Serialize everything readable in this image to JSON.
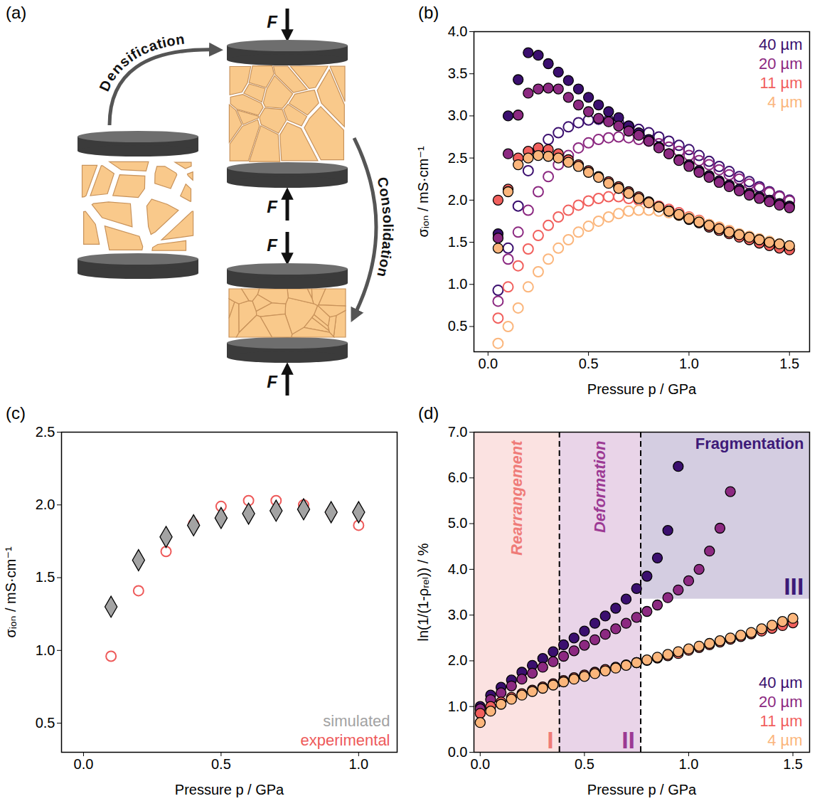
{
  "diagram": {
    "panel": "(a)",
    "type": "diagram",
    "step1": "Densification",
    "step2": "Consolidation",
    "force": "F"
  },
  "chart_data": [
    {
      "panel": "(b)",
      "type": "scatter",
      "xlabel": "Pressure p / GPa",
      "ylabel": "σᵢₒₙ / mS·cm⁻¹",
      "xlim": [
        -0.07,
        1.6
      ],
      "ylim": [
        0.2,
        4.0
      ],
      "xticks": [
        {
          "value": 0,
          "label": "0.0"
        },
        0.5,
        {
          "value": 1,
          "label": "1.0"
        },
        1.5
      ],
      "yticks": [
        0.5,
        {
          "value": 1,
          "label": "1.0"
        },
        1.5,
        {
          "value": 2,
          "label": "2.0"
        },
        2.5,
        {
          "value": 3,
          "label": "3.0"
        },
        3.5,
        {
          "value": 4,
          "label": "4.0"
        }
      ],
      "legend": "top-right",
      "x": [
        0.05,
        0.1,
        0.15,
        0.2,
        0.25,
        0.3,
        0.35,
        0.4,
        0.45,
        0.5,
        0.55,
        0.6,
        0.65,
        0.7,
        0.75,
        0.8,
        0.85,
        0.9,
        0.95,
        1.0,
        1.05,
        1.1,
        1.15,
        1.2,
        1.25,
        1.3,
        1.35,
        1.4,
        1.45,
        1.5
      ],
      "series": [
        {
          "name": "40 µm",
          "color": "#3b0f6f",
          "marker": "circle",
          "values": [
            1.6,
            3.0,
            3.43,
            3.75,
            3.72,
            3.62,
            3.52,
            3.42,
            3.32,
            3.22,
            3.13,
            3.05,
            2.98,
            2.88,
            2.8,
            2.72,
            2.63,
            2.55,
            2.48,
            2.42,
            2.35,
            2.29,
            2.23,
            2.18,
            2.13,
            2.08,
            2.04,
            2.0,
            1.96,
            1.93
          ]
        },
        {
          "name": "20 µm",
          "color": "#8c2981",
          "marker": "circle",
          "values": [
            1.55,
            2.55,
            3.01,
            3.27,
            3.32,
            3.33,
            3.32,
            3.22,
            3.13,
            3.05,
            2.97,
            2.93,
            2.88,
            2.82,
            2.77,
            2.7,
            2.62,
            2.55,
            2.47,
            2.4,
            2.33,
            2.27,
            2.21,
            2.16,
            2.11,
            2.06,
            2.02,
            1.98,
            1.94,
            1.91
          ]
        },
        {
          "name": "11 µm",
          "color": "#f1605d",
          "marker": "circle",
          "values": [
            2.0,
            2.13,
            2.5,
            2.58,
            2.62,
            2.6,
            2.55,
            2.48,
            2.42,
            2.35,
            2.28,
            2.22,
            2.16,
            2.1,
            2.04,
            1.98,
            1.92,
            1.87,
            1.82,
            1.77,
            1.73,
            1.68,
            1.64,
            1.6,
            1.56,
            1.53,
            1.49,
            1.46,
            1.43,
            1.41
          ]
        },
        {
          "name": "4 µm",
          "color": "#fbb67c",
          "marker": "circle",
          "values": [
            1.43,
            2.1,
            2.42,
            2.5,
            2.53,
            2.52,
            2.5,
            2.45,
            2.4,
            2.33,
            2.27,
            2.2,
            2.14,
            2.08,
            2.02,
            1.97,
            1.92,
            1.87,
            1.83,
            1.78,
            1.74,
            1.7,
            1.66,
            1.62,
            1.59,
            1.56,
            1.53,
            1.5,
            1.48,
            1.46
          ]
        },
        {
          "name": "40 µm",
          "color": "#3b0f6f",
          "marker": "open circle",
          "values": [
            0.93,
            1.43,
            1.93,
            2.35,
            2.6,
            2.72,
            2.8,
            2.87,
            2.92,
            2.95,
            2.96,
            2.95,
            2.92,
            2.88,
            2.84,
            2.8,
            2.75,
            2.7,
            2.65,
            2.6,
            2.53,
            2.46,
            2.4,
            2.34,
            2.28,
            2.22,
            2.16,
            2.1,
            2.05,
            2.0
          ]
        },
        {
          "name": "20 µm",
          "color": "#8c2981",
          "marker": "open circle",
          "values": [
            0.8,
            1.3,
            1.62,
            1.88,
            2.1,
            2.28,
            2.42,
            2.53,
            2.62,
            2.68,
            2.72,
            2.74,
            2.75,
            2.74,
            2.72,
            2.7,
            2.67,
            2.63,
            2.58,
            2.53,
            2.47,
            2.42,
            2.36,
            2.3,
            2.25,
            2.19,
            2.14,
            2.09,
            2.04,
            1.99
          ]
        },
        {
          "name": "11 µm",
          "color": "#f1605d",
          "marker": "open circle",
          "values": [
            0.6,
            0.97,
            1.22,
            1.42,
            1.58,
            1.7,
            1.8,
            1.88,
            1.94,
            1.99,
            2.02,
            2.04,
            2.04,
            2.02,
            2.0,
            1.97,
            1.93,
            1.89,
            1.85,
            1.8,
            1.76,
            1.71,
            1.67,
            1.63,
            1.59,
            1.55,
            1.52,
            1.48,
            1.45,
            1.42
          ]
        },
        {
          "name": "4 µm",
          "color": "#fbb67c",
          "marker": "open circle",
          "values": [
            0.3,
            0.5,
            0.72,
            0.97,
            1.15,
            1.3,
            1.43,
            1.53,
            1.62,
            1.69,
            1.75,
            1.8,
            1.84,
            1.87,
            1.88,
            1.88,
            1.87,
            1.85,
            1.82,
            1.79,
            1.75,
            1.71,
            1.68,
            1.64,
            1.6,
            1.57,
            1.54,
            1.51,
            1.48,
            1.45
          ]
        }
      ]
    },
    {
      "panel": "(c)",
      "type": "scatter",
      "xlabel": "Pressure p / GPa",
      "ylabel": "σᵢₒₙ / mS·cm⁻¹",
      "xlim": [
        -0.08,
        1.14
      ],
      "ylim": [
        0.3,
        2.5
      ],
      "xticks": [
        {
          "value": 0,
          "label": "0.0"
        },
        0.5,
        {
          "value": 1,
          "label": "1.0"
        }
      ],
      "yticks": [
        0.5,
        {
          "value": 1,
          "label": "1.0"
        },
        1.5,
        {
          "value": 2,
          "label": "2.0"
        },
        2.5
      ],
      "legend": "bottom-right",
      "x": [
        0.1,
        0.2,
        0.3,
        0.4,
        0.5,
        0.6,
        0.7,
        0.8,
        0.9,
        1.0
      ],
      "series": [
        {
          "name": "simulated",
          "color": "#a3a3a3",
          "marker": "diamond",
          "values": [
            1.3,
            1.62,
            1.78,
            1.86,
            1.91,
            1.94,
            1.96,
            1.97,
            1.95,
            1.95
          ]
        },
        {
          "name": "experimental",
          "color": "#ee5a5a",
          "marker": "open circle",
          "values": [
            0.96,
            1.41,
            1.68,
            1.87,
            1.99,
            2.03,
            2.03,
            2.0,
            1.95,
            1.86
          ]
        }
      ]
    },
    {
      "panel": "(d)",
      "type": "scatter",
      "xlabel": "Pressure p / GPa",
      "ylabel": "ln(1/(1-ρᵣₑₗ)) / %",
      "xlim": [
        -0.03,
        1.58
      ],
      "ylim": [
        0,
        7
      ],
      "xticks": [
        {
          "value": 0,
          "label": "0.0"
        },
        0.5,
        {
          "value": 1,
          "label": "1.0"
        },
        1.5
      ],
      "yticks": [
        {
          "value": 0,
          "label": "0.0"
        },
        {
          "value": 1,
          "label": "1.0"
        },
        {
          "value": 2,
          "label": "2.0"
        },
        {
          "value": 3,
          "label": "3.0"
        },
        {
          "value": 4,
          "label": "4.0"
        },
        {
          "value": 5,
          "label": "5.0"
        },
        {
          "value": 6,
          "label": "6.0"
        },
        {
          "value": 7,
          "label": "7.0"
        }
      ],
      "legend": "bottom-right",
      "regions": [
        {
          "label": "I",
          "name": "Rearrangement",
          "x": [
            -0.03,
            0.38
          ],
          "y": [
            0,
            7
          ],
          "color": "#ef7b78"
        },
        {
          "label": "II",
          "name": "Deformation",
          "x": [
            0.38,
            0.77
          ],
          "y": [
            0,
            7
          ],
          "color": "#9c3a94"
        },
        {
          "label": "III",
          "name": "Fragmentation",
          "x": [
            0.77,
            1.58
          ],
          "y": [
            3.35,
            7
          ],
          "color": "#3d1a78"
        }
      ],
      "series": [
        {
          "name": "40 µm",
          "color": "#3b0f6f",
          "marker": "circle",
          "x": [
            0,
            0.05,
            0.1,
            0.15,
            0.2,
            0.25,
            0.3,
            0.35,
            0.4,
            0.45,
            0.5,
            0.55,
            0.6,
            0.65,
            0.7,
            0.75,
            0.8,
            0.85,
            0.9,
            0.95
          ],
          "values": [
            1.0,
            1.25,
            1.42,
            1.58,
            1.75,
            1.9,
            2.05,
            2.2,
            2.35,
            2.5,
            2.65,
            2.82,
            2.98,
            3.15,
            3.35,
            3.58,
            3.85,
            4.25,
            4.85,
            6.25
          ]
        },
        {
          "name": "20 µm",
          "color": "#8c2981",
          "marker": "circle",
          "x": [
            0,
            0.05,
            0.1,
            0.15,
            0.2,
            0.25,
            0.3,
            0.35,
            0.4,
            0.45,
            0.5,
            0.55,
            0.6,
            0.65,
            0.7,
            0.75,
            0.8,
            0.85,
            0.9,
            0.95,
            1.0,
            1.05,
            1.1,
            1.15,
            1.2
          ],
          "values": [
            0.95,
            1.15,
            1.3,
            1.45,
            1.6,
            1.73,
            1.86,
            1.98,
            2.1,
            2.22,
            2.34,
            2.46,
            2.58,
            2.7,
            2.82,
            2.95,
            3.08,
            3.22,
            3.38,
            3.55,
            3.75,
            4.0,
            4.4,
            4.9,
            5.7
          ]
        },
        {
          "name": "11 µm",
          "color": "#f1605d",
          "marker": "circle",
          "x": [
            0,
            0.05,
            0.1,
            0.15,
            0.2,
            0.25,
            0.3,
            0.35,
            0.4,
            0.45,
            0.5,
            0.55,
            0.6,
            0.65,
            0.7,
            0.75,
            0.8,
            0.85,
            0.9,
            0.95,
            1.0,
            1.05,
            1.1,
            1.15,
            1.2,
            1.25,
            1.3,
            1.35,
            1.4,
            1.45,
            1.5
          ],
          "values": [
            0.85,
            1.0,
            1.1,
            1.2,
            1.28,
            1.36,
            1.43,
            1.5,
            1.57,
            1.63,
            1.69,
            1.75,
            1.81,
            1.86,
            1.91,
            1.96,
            2.01,
            2.06,
            2.11,
            2.16,
            2.23,
            2.29,
            2.35,
            2.41,
            2.47,
            2.53,
            2.59,
            2.65,
            2.71,
            2.77,
            2.83
          ]
        },
        {
          "name": "4 µm",
          "color": "#fbb67c",
          "marker": "circle",
          "x": [
            0,
            0.05,
            0.1,
            0.15,
            0.2,
            0.25,
            0.3,
            0.35,
            0.4,
            0.45,
            0.5,
            0.55,
            0.6,
            0.65,
            0.7,
            0.75,
            0.8,
            0.85,
            0.9,
            0.95,
            1.0,
            1.05,
            1.1,
            1.15,
            1.2,
            1.25,
            1.3,
            1.35,
            1.4,
            1.45,
            1.5
          ],
          "values": [
            0.65,
            0.9,
            1.05,
            1.16,
            1.25,
            1.33,
            1.4,
            1.47,
            1.54,
            1.6,
            1.66,
            1.72,
            1.78,
            1.84,
            1.9,
            1.96,
            2.02,
            2.08,
            2.14,
            2.2,
            2.26,
            2.32,
            2.38,
            2.44,
            2.5,
            2.56,
            2.62,
            2.7,
            2.78,
            2.86,
            2.93
          ]
        }
      ]
    }
  ]
}
